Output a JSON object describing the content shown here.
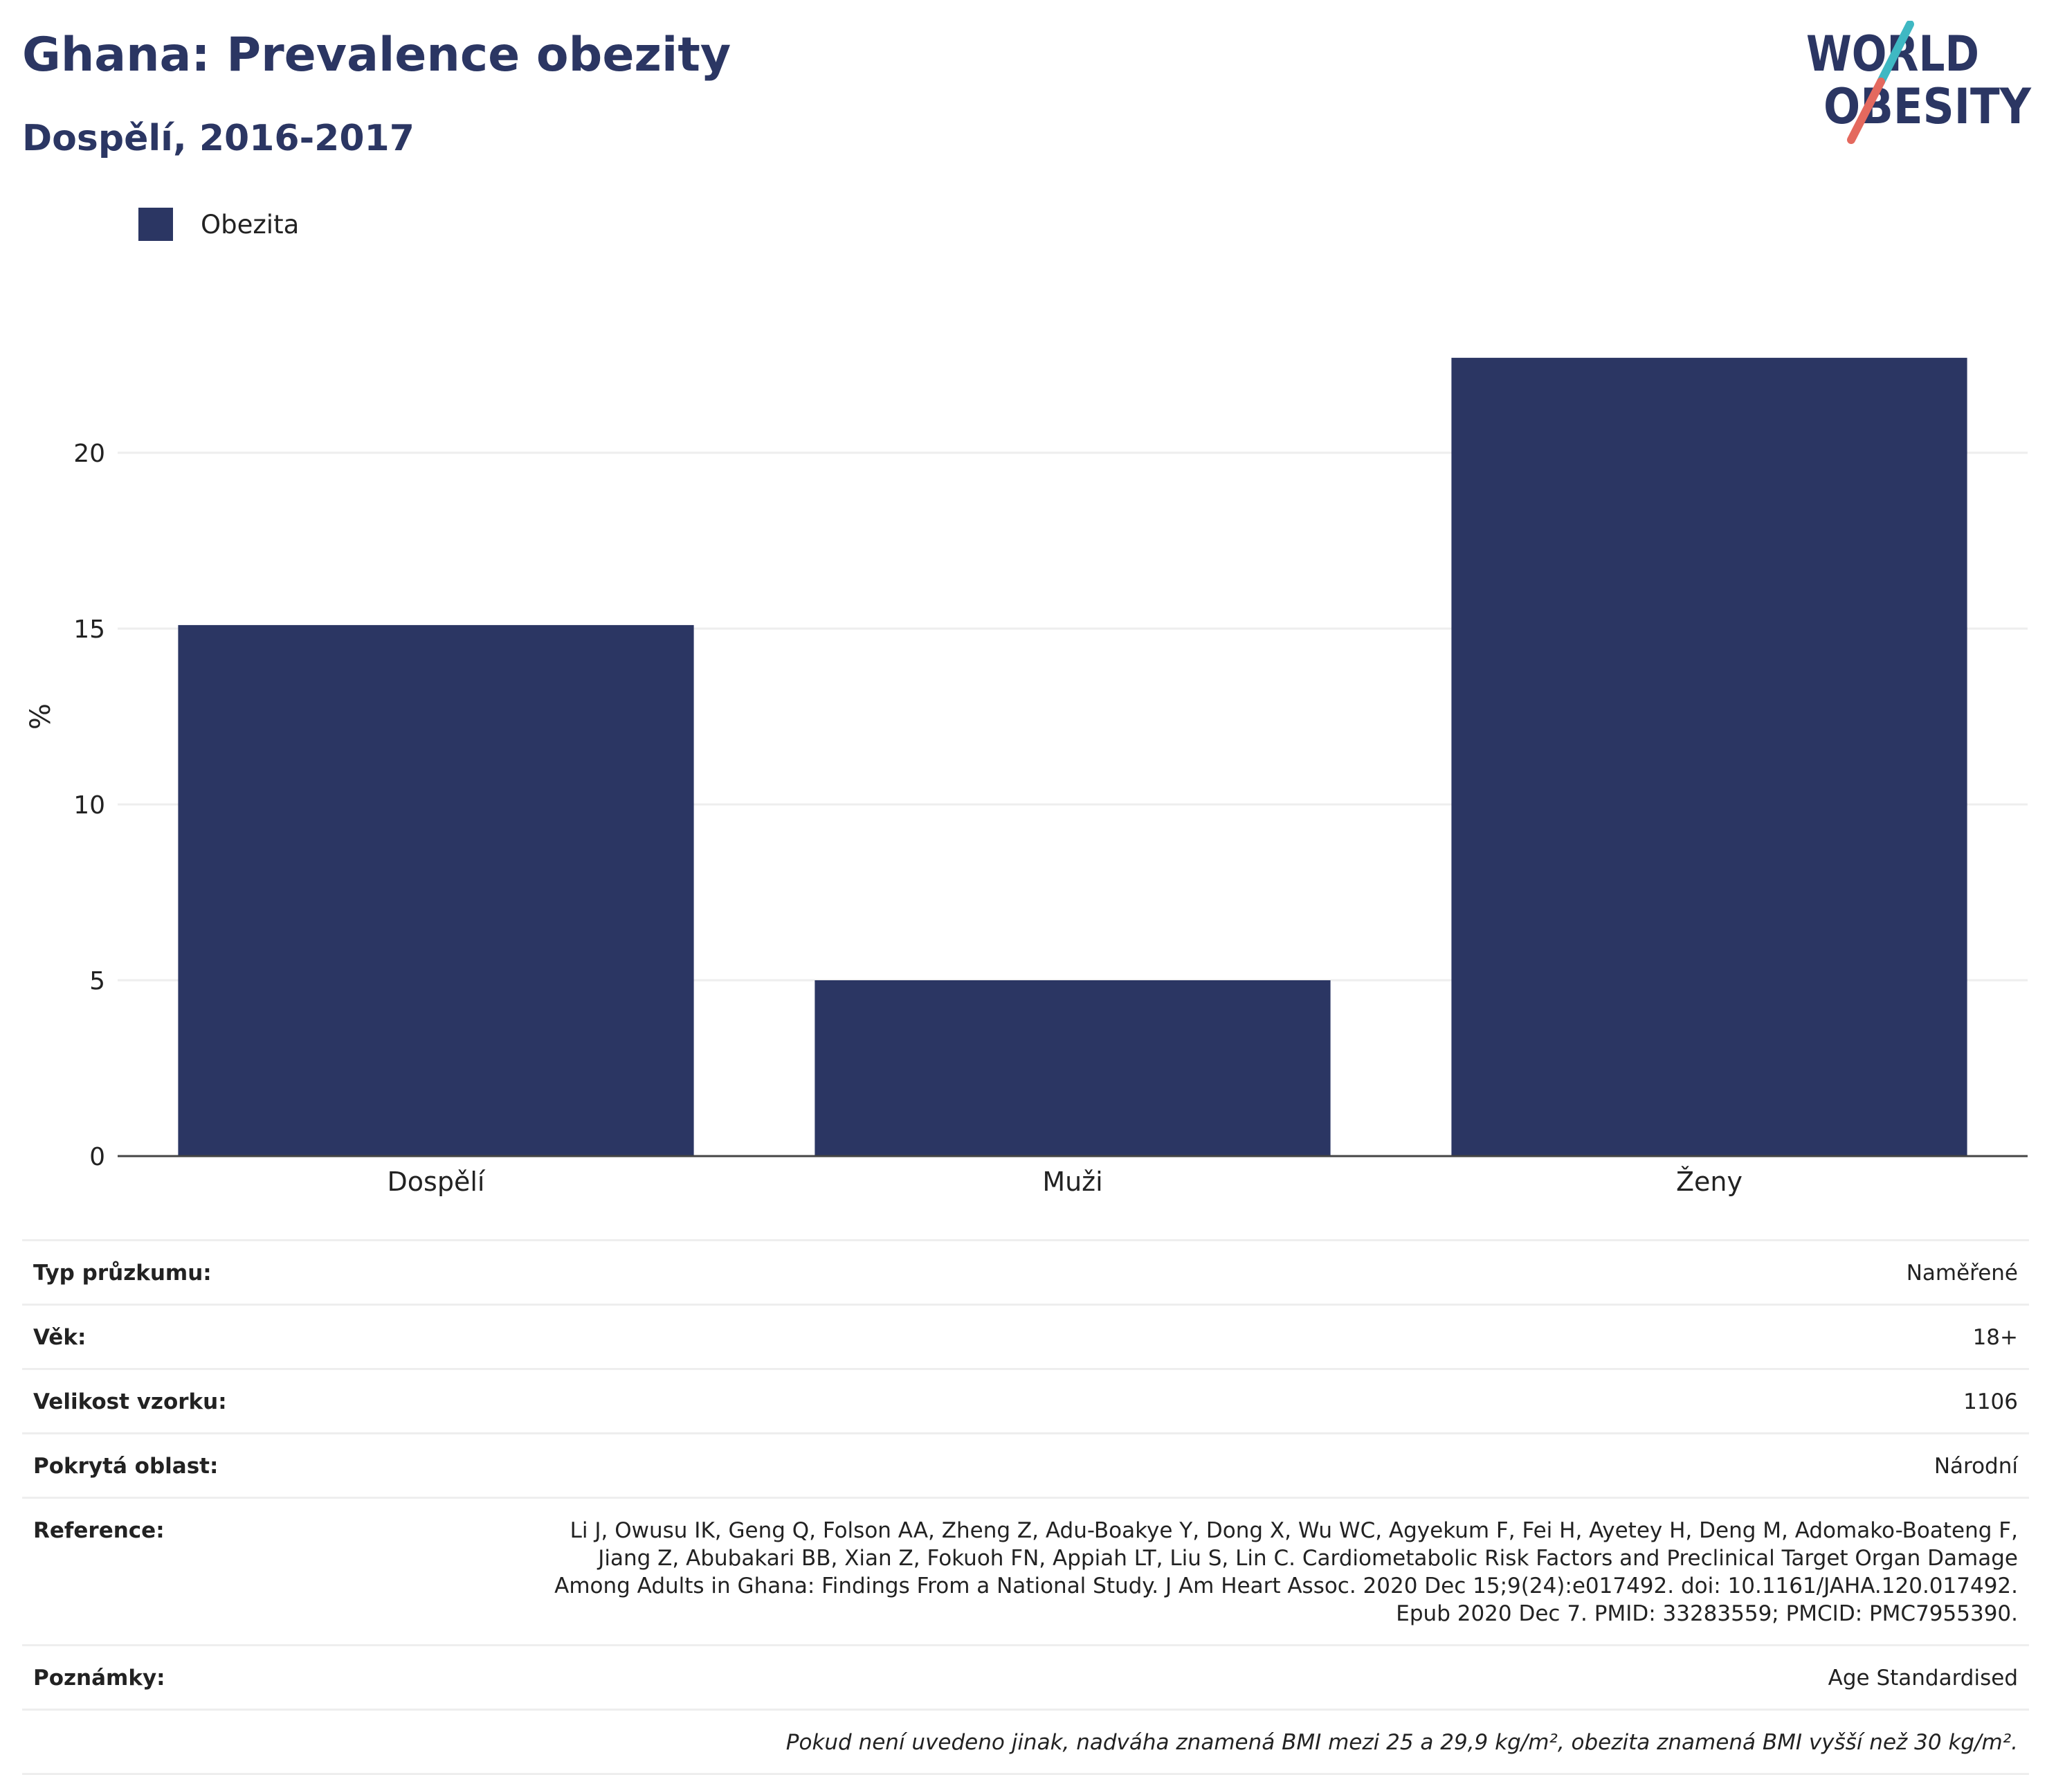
{
  "header": {
    "title": "Ghana: Prevalence obezity",
    "subtitle": "Dospělí, 2016-2017"
  },
  "logo": {
    "line1": "WORLD",
    "line2": "OBESITY"
  },
  "colors": {
    "bar": "#2b3663",
    "title": "#2b3663",
    "logo_teal": "#3fb8c3",
    "logo_red": "#e4695e",
    "grid": "#eeeeee"
  },
  "chart_data": {
    "type": "bar",
    "categories": [
      "Dospělí",
      "Muži",
      "Ženy"
    ],
    "series": [
      {
        "name": "Obezita",
        "values": [
          15.1,
          5.0,
          22.7
        ]
      }
    ],
    "ylabel": "%",
    "xlabel": "",
    "ylim": [
      0,
      25
    ],
    "yticks": [
      0,
      5,
      10,
      15,
      20
    ],
    "grid": true,
    "legend_position": "top-left"
  },
  "info": {
    "rows": [
      {
        "label": "Typ průzkumu:",
        "value": "Naměřené"
      },
      {
        "label": "Věk:",
        "value": "18+"
      },
      {
        "label": "Velikost vzorku:",
        "value": "1106"
      },
      {
        "label": "Pokrytá oblast:",
        "value": "Národní"
      },
      {
        "label": "Reference:",
        "value": "Li J, Owusu IK, Geng Q, Folson AA, Zheng Z, Adu-Boakye Y, Dong X, Wu WC, Agyekum F, Fei H, Ayetey H, Deng M, Adomako-Boateng F, Jiang Z, Abubakari BB, Xian Z, Fokuoh FN, Appiah LT, Liu S, Lin C. Cardiometabolic Risk Factors and Preclinical Target Organ Damage Among Adults in Ghana: Findings From a National Study. J Am Heart Assoc. 2020 Dec 15;9(24):e017492. doi: 10.1161/JAHA.120.017492. Epub 2020 Dec 7. PMID: 33283559; PMCID: PMC7955390."
      },
      {
        "label": "Poznámky:",
        "value": "Age Standardised"
      }
    ],
    "footnote": "Pokud není uvedeno jinak, nadváha znamená BMI mezi 25 a 29,9 kg/m², obezita znamená BMI vyšší než 30 kg/m²."
  }
}
